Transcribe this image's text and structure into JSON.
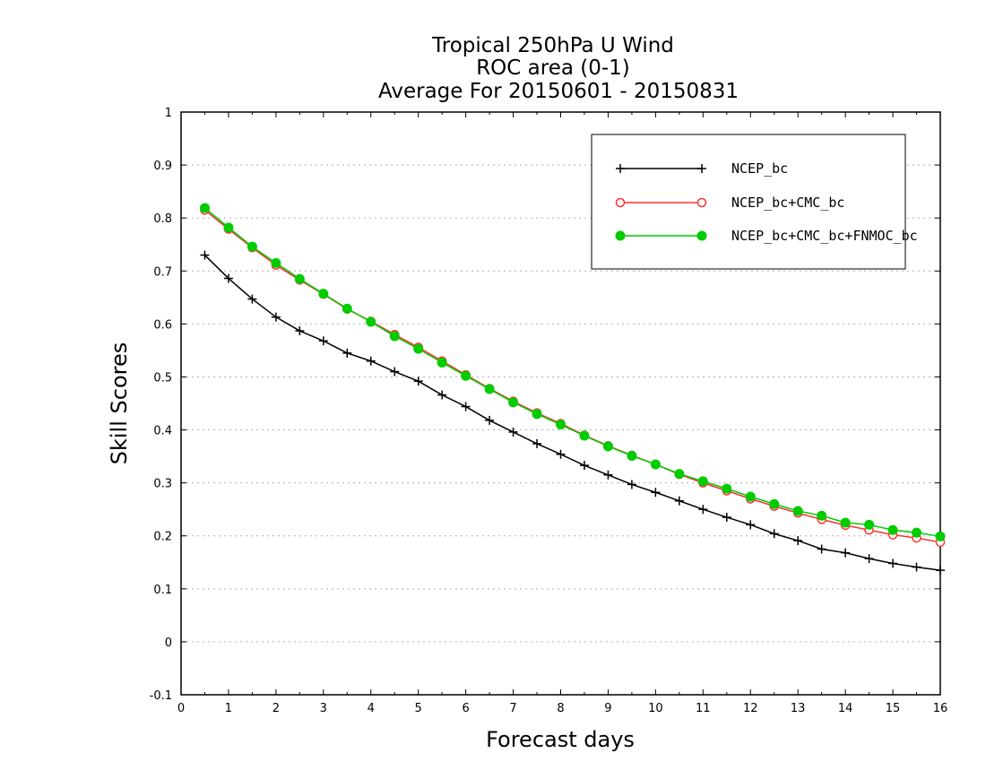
{
  "chart_data": {
    "type": "line",
    "title": [
      "Tropical 250hPa U Wind",
      "ROC area (0-1)",
      "Average For 20150601 - 20150831"
    ],
    "xlabel": "Forecast days",
    "ylabel": "Skill Scores",
    "xlim": [
      0,
      16
    ],
    "ylim": [
      -0.1,
      1
    ],
    "xticks": [
      0,
      1,
      2,
      3,
      4,
      5,
      6,
      7,
      8,
      9,
      10,
      11,
      12,
      13,
      14,
      15,
      16
    ],
    "yticks": [
      -0.1,
      0,
      0.1,
      0.2,
      0.3,
      0.4,
      0.5,
      0.6,
      0.7,
      0.8,
      0.9,
      1
    ],
    "ytick_labels": [
      "-0.1",
      "0",
      "0.1",
      "0.2",
      "0.3",
      "0.4",
      "0.5",
      "0.6",
      "0.7",
      "0.8",
      "0.9",
      "1"
    ],
    "grid": "horizontal dotted",
    "legend_position": "top-right",
    "x": [
      0.5,
      1,
      1.5,
      2,
      2.5,
      3,
      3.5,
      4,
      4.5,
      5,
      5.5,
      6,
      6.5,
      7,
      7.5,
      8,
      8.5,
      9,
      9.5,
      10,
      10.5,
      11,
      11.5,
      12,
      12.5,
      13,
      13.5,
      14,
      14.5,
      15,
      15.5,
      16
    ],
    "series": [
      {
        "name": "NCEP_bc",
        "color": "#000000",
        "marker": "plus",
        "values": [
          0.73,
          0.686,
          0.647,
          0.613,
          0.587,
          0.568,
          0.545,
          0.53,
          0.51,
          0.492,
          0.466,
          0.444,
          0.418,
          0.396,
          0.374,
          0.354,
          0.333,
          0.315,
          0.297,
          0.282,
          0.266,
          0.25,
          0.235,
          0.221,
          0.204,
          0.191,
          0.175,
          0.168,
          0.157,
          0.148,
          0.141,
          0.135
        ]
      },
      {
        "name": "NCEP_bc+CMC_bc",
        "color": "#ff3030",
        "marker": "open-circle",
        "values": [
          0.815,
          0.779,
          0.744,
          0.711,
          0.683,
          0.656,
          0.628,
          0.605,
          0.58,
          0.556,
          0.53,
          0.504,
          0.478,
          0.454,
          0.432,
          0.412,
          0.39,
          0.37,
          0.352,
          0.335,
          0.316,
          0.3,
          0.285,
          0.27,
          0.256,
          0.243,
          0.231,
          0.22,
          0.211,
          0.202,
          0.196,
          0.188
        ]
      },
      {
        "name": "NCEP_bc+CMC_bc+FNMOC_bc",
        "color": "#00cc00",
        "marker": "filled-circle",
        "values": [
          0.819,
          0.782,
          0.746,
          0.715,
          0.685,
          0.657,
          0.629,
          0.604,
          0.577,
          0.553,
          0.527,
          0.502,
          0.477,
          0.452,
          0.43,
          0.41,
          0.389,
          0.369,
          0.351,
          0.335,
          0.317,
          0.303,
          0.289,
          0.274,
          0.26,
          0.247,
          0.238,
          0.225,
          0.221,
          0.211,
          0.206,
          0.199
        ]
      }
    ]
  }
}
